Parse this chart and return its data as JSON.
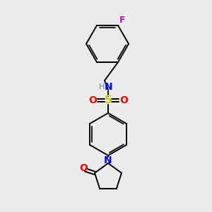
{
  "background_color": "#ebebeb",
  "bond_color": "#000000",
  "atom_colors": {
    "N": "#0000ff",
    "O": "#ff0000",
    "S": "#cccc00",
    "F": "#cc00cc",
    "H": "#5a8a8a",
    "C": "#000000"
  },
  "figsize": [
    3.0,
    3.0
  ],
  "dpi": 100,
  "lw": 1.4,
  "lw_double_inner": 1.2
}
